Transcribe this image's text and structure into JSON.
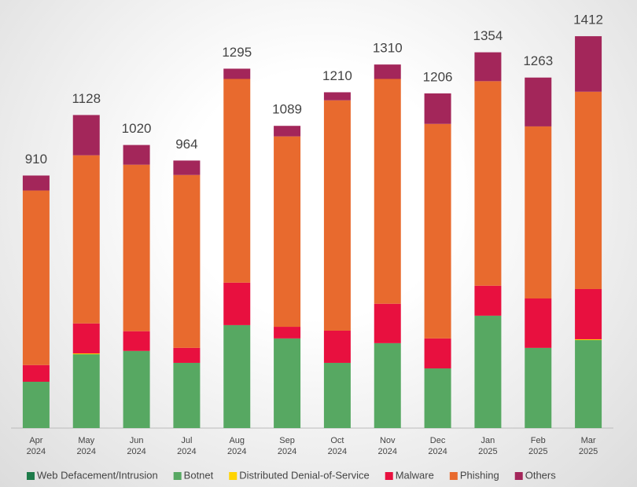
{
  "chart_data": {
    "type": "stacked_bar",
    "categories": [
      "Apr 2024",
      "May 2024",
      "Jun 2024",
      "Jul 2024",
      "Aug 2024",
      "Sep 2024",
      "Oct 2024",
      "Nov 2024",
      "Dec 2024",
      "Jan 2025",
      "Feb 2025",
      "Mar 2025"
    ],
    "series": [
      {
        "name": "Web Defacement/Intrusion",
        "color": "#1e7b4a",
        "values": [
          0,
          0,
          0,
          0,
          0,
          0,
          0,
          0,
          0,
          0,
          0,
          0
        ]
      },
      {
        "name": "Botnet",
        "color": "#57a862",
        "values": [
          167,
          266,
          278,
          235,
          371,
          323,
          235,
          306,
          215,
          405,
          289,
          317
        ]
      },
      {
        "name": "Distributed Denial-of-Service",
        "color": "#ffd400",
        "values": [
          0,
          3,
          0,
          0,
          0,
          0,
          0,
          0,
          0,
          0,
          0,
          3
        ]
      },
      {
        "name": "Malware",
        "color": "#e8103f",
        "values": [
          60,
          108,
          71,
          54,
          153,
          42,
          116,
          142,
          108,
          108,
          178,
          181
        ]
      },
      {
        "name": "Phishing",
        "color": "#e86a2e",
        "values": [
          629,
          606,
          600,
          623,
          734,
          686,
          830,
          810,
          773,
          737,
          620,
          711
        ]
      },
      {
        "name": "Others",
        "color": "#a3265a",
        "values": [
          54,
          145,
          71,
          52,
          37,
          38,
          29,
          52,
          110,
          104,
          176,
          200
        ]
      }
    ],
    "totals": [
      910,
      1128,
      1020,
      964,
      1295,
      1089,
      1210,
      1310,
      1206,
      1354,
      1263,
      1412
    ],
    "ylim": [
      0,
      1500
    ],
    "legend": "bottom"
  }
}
